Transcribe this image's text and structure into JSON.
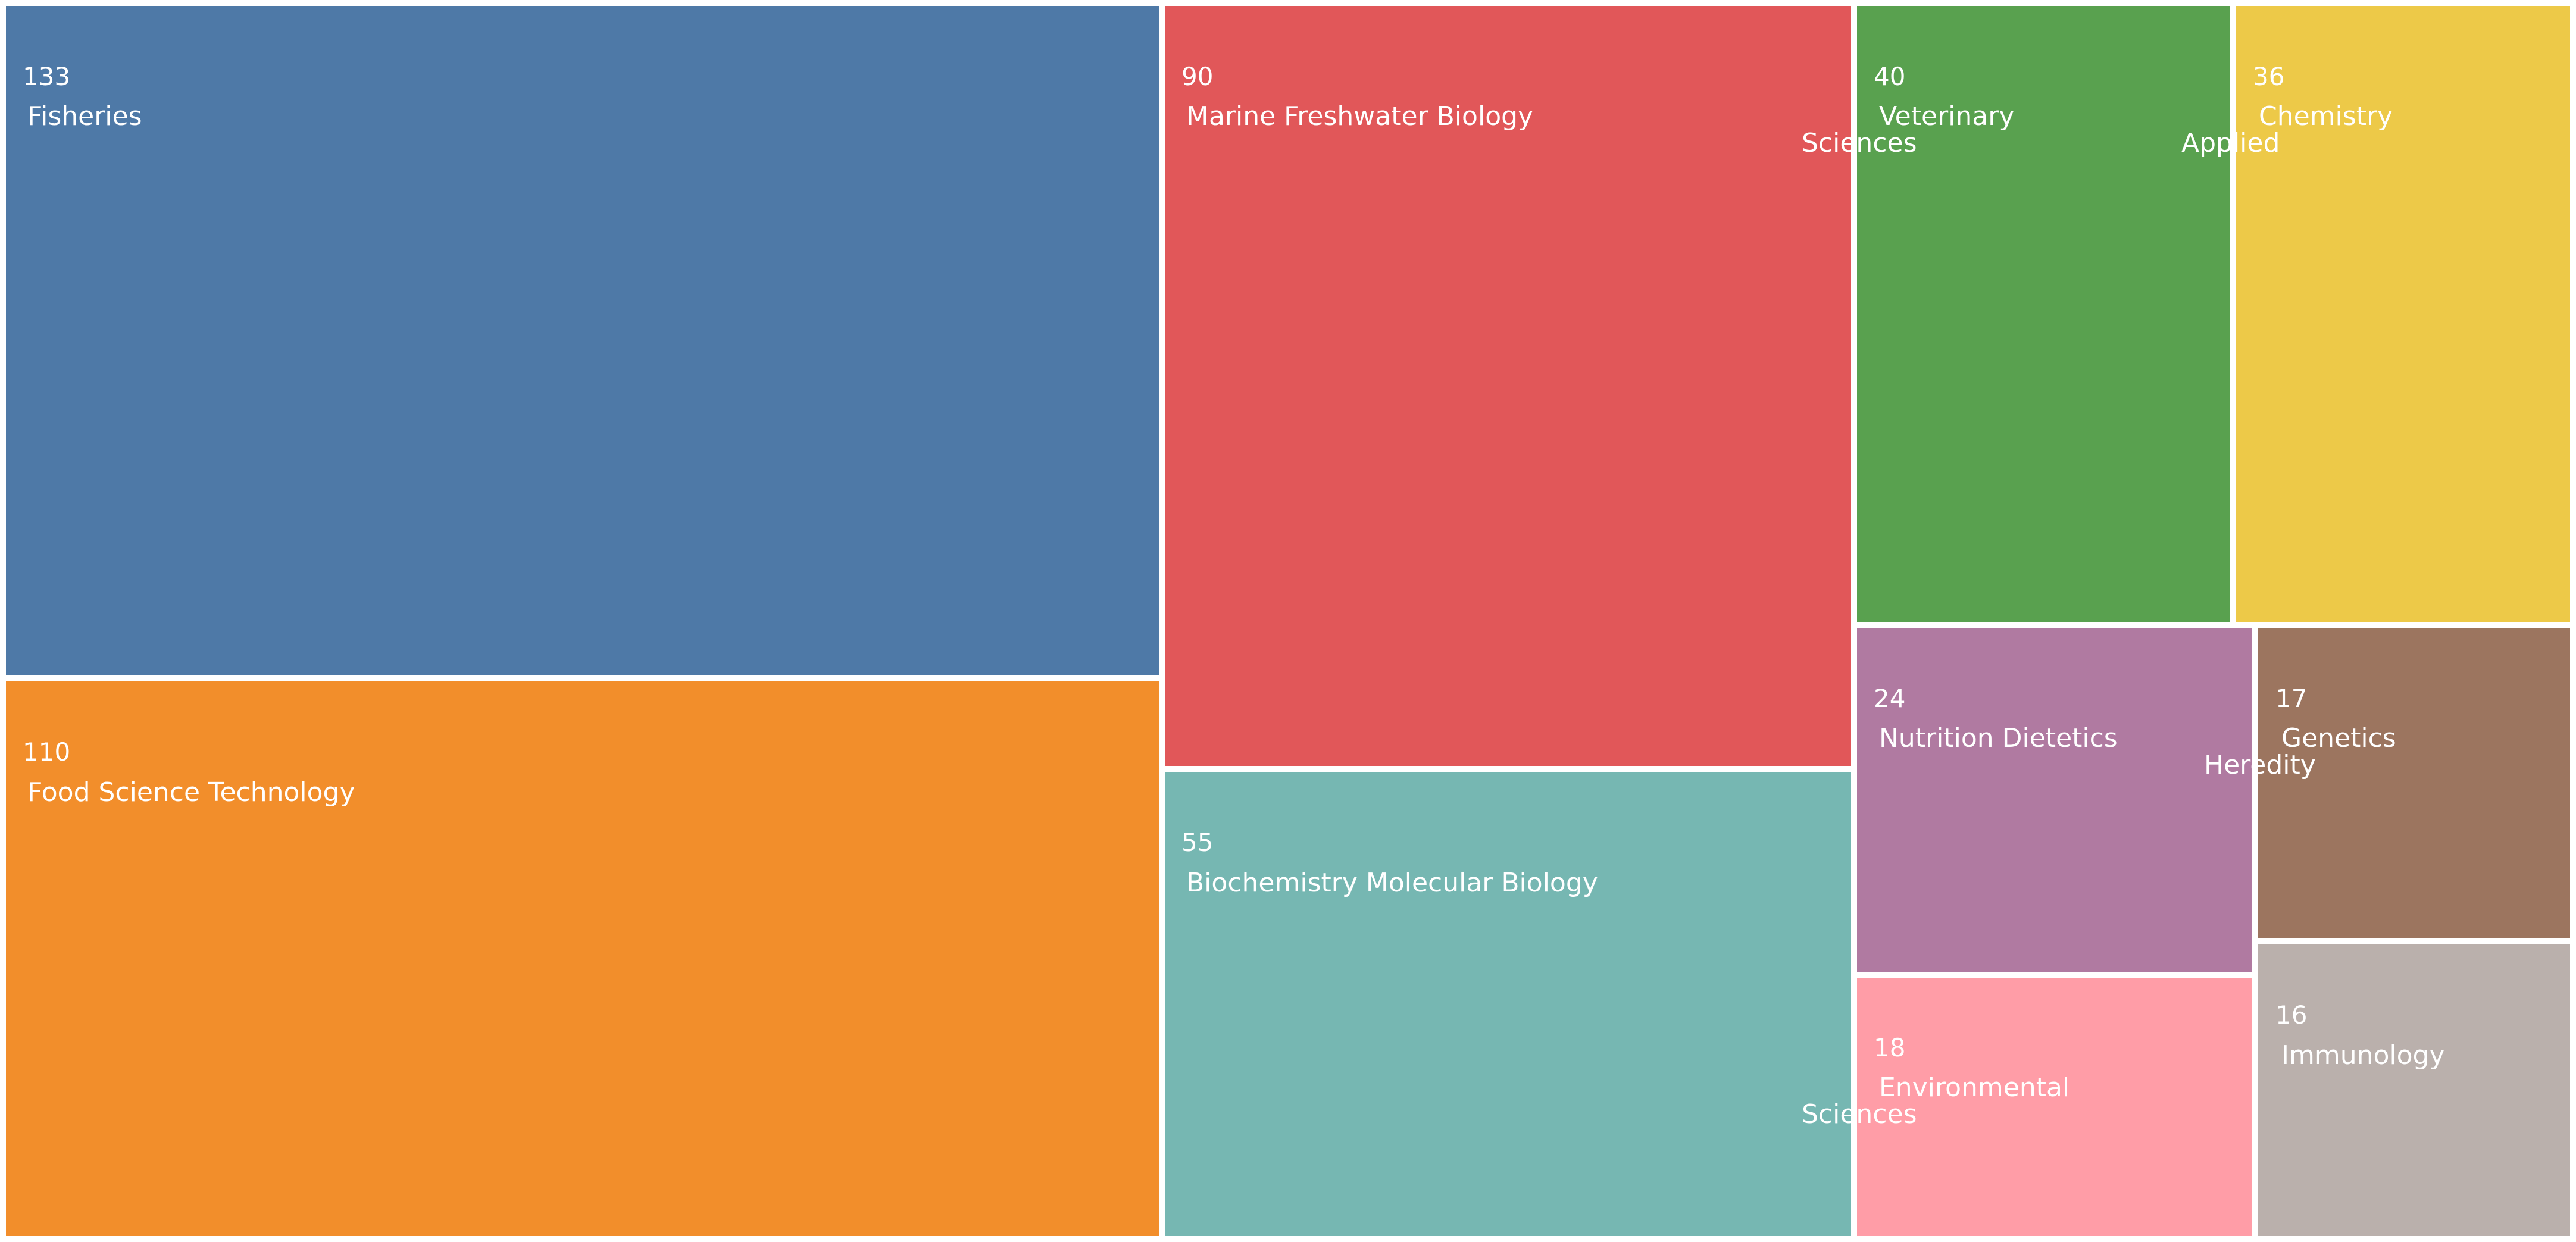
{
  "chart_data": {
    "type": "treemap",
    "title": "",
    "nodes": [
      {
        "id": "fisheries",
        "label": "Fisheries",
        "label_lines": [
          "Fisheries"
        ],
        "value": 133,
        "color": "#4E79A7"
      },
      {
        "id": "food-science-technology",
        "label": "Food Science Technology",
        "label_lines": [
          "Food Science Technology"
        ],
        "value": 110,
        "color": "#F28E2B"
      },
      {
        "id": "marine-freshwater-biology",
        "label": "Marine Freshwater Biology",
        "label_lines": [
          "Marine Freshwater Biology"
        ],
        "value": 90,
        "color": "#E15759"
      },
      {
        "id": "biochemistry-molecular-biology",
        "label": "Biochemistry Molecular Biology",
        "label_lines": [
          "Biochemistry Molecular Biology"
        ],
        "value": 55,
        "color": "#76B7B2"
      },
      {
        "id": "veterinary-sciences",
        "label": "Veterinary Sciences",
        "label_lines": [
          "Veterinary",
          "Sciences"
        ],
        "value": 40,
        "color": "#59A14F"
      },
      {
        "id": "chemistry-applied",
        "label": "Chemistry Applied",
        "label_lines": [
          "Chemistry",
          "Applied"
        ],
        "value": 36,
        "color": "#EDC948"
      },
      {
        "id": "nutrition-dietetics",
        "label": "Nutrition Dietetics",
        "label_lines": [
          "Nutrition Dietetics"
        ],
        "value": 24,
        "color": "#B07AA1"
      },
      {
        "id": "environmental-sciences",
        "label": "Environmental Sciences",
        "label_lines": [
          "Environmental",
          "Sciences"
        ],
        "value": 18,
        "color": "#FF9DA7"
      },
      {
        "id": "genetics-heredity",
        "label": "Genetics Heredity",
        "label_lines": [
          "Genetics",
          "Heredity"
        ],
        "value": 17,
        "color": "#9C755F"
      },
      {
        "id": "immunology",
        "label": "Immunology",
        "label_lines": [
          "Immunology"
        ],
        "value": 16,
        "color": "#BAB0AC"
      }
    ]
  }
}
